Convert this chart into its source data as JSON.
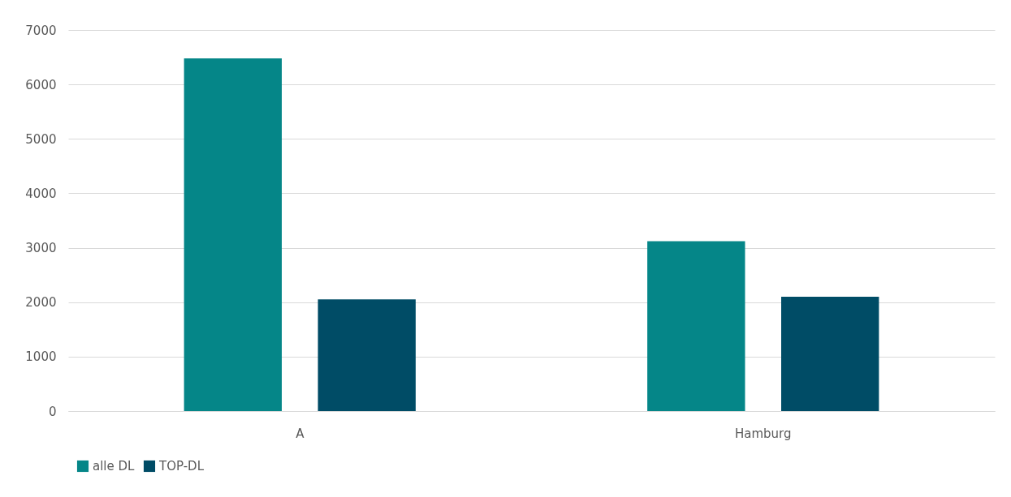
{
  "chart_data": {
    "type": "bar",
    "categories": [
      "A",
      "Hamburg"
    ],
    "series": [
      {
        "name": "alle DL",
        "color": "#058688",
        "values": [
          6480,
          3120
        ]
      },
      {
        "name": "TOP-DL",
        "color": "#004c66",
        "values": [
          2050,
          2100
        ]
      }
    ],
    "ylim": [
      0,
      7000
    ],
    "yticks": [
      0,
      1000,
      2000,
      3000,
      4000,
      5000,
      6000,
      7000
    ],
    "grid": "y",
    "legend": "bottom"
  }
}
